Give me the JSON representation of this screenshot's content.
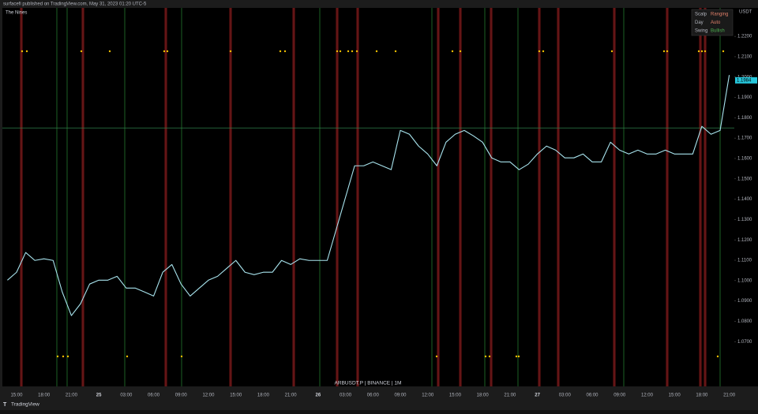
{
  "chart_data": {
    "type": "line",
    "published": "surfacefi published on TradingView.com, May 31, 2023 01:20 UTC-5",
    "indicator_name": "The Nines",
    "symbol_label": "ARBUSDT.P | BINANCE | 1M",
    "axis_unit": "USDT",
    "footer": "TradingView",
    "status_table": [
      [
        "Scalp",
        "Ranging"
      ],
      [
        "Day",
        "Auto"
      ],
      [
        "Swing",
        "Bullish"
      ]
    ],
    "categories": [
      null,
      "15:00",
      null,
      null,
      "18:00",
      null,
      null,
      "21:00",
      null,
      null,
      "25",
      null,
      null,
      "03:00",
      null,
      null,
      "06:00",
      null,
      null,
      "09:00",
      null,
      null,
      "12:00",
      null,
      null,
      "15:00",
      null,
      null,
      "18:00",
      null,
      null,
      "21:00",
      null,
      null,
      "26",
      null,
      null,
      "03:00",
      null,
      null,
      "06:00",
      null,
      null,
      "09:00",
      null,
      null,
      "12:00",
      null,
      null,
      "15:00",
      null,
      null,
      "18:00",
      null,
      null,
      "21:00",
      null,
      null,
      "27",
      null,
      null,
      "03:00",
      null,
      null,
      "06:00",
      null,
      null,
      "09:00",
      null,
      null,
      "12:00",
      null,
      null,
      "15:00",
      null,
      null,
      "18:00",
      null,
      null,
      "21:00"
    ],
    "values": [
      1.1002,
      1.1041,
      1.1138,
      1.1099,
      1.1107,
      1.1099,
      1.0944,
      1.0828,
      1.0886,
      1.0983,
      1.1002,
      1.1002,
      1.1021,
      1.0963,
      1.0963,
      1.0944,
      1.0924,
      1.1041,
      1.1079,
      1.0983,
      1.0924,
      1.0963,
      1.1002,
      1.1021,
      1.106,
      1.1099,
      1.1041,
      1.1029,
      1.1041,
      1.1041,
      1.1099,
      1.1079,
      1.1107,
      1.1099,
      1.1099,
      1.1099,
      1.1254,
      1.1409,
      1.1564,
      1.1564,
      1.1583,
      1.1564,
      1.1545,
      1.1738,
      1.1719,
      1.1661,
      1.1622,
      1.1564,
      1.168,
      1.1719,
      1.1738,
      1.1711,
      1.168,
      1.1603,
      1.1583,
      1.1583,
      1.1545,
      1.1572,
      1.1622,
      1.1661,
      1.1641,
      1.1603,
      1.1603,
      1.1622,
      1.1583,
      1.1583,
      1.168,
      1.1641,
      1.1622,
      1.1641,
      1.1622,
      1.1622,
      1.1641,
      1.1622,
      1.1622,
      1.1622,
      1.1758,
      1.1719,
      1.1738,
      1.201
    ],
    "color": "#a8e4ee",
    "last_price": 1.1984,
    "hline": 1.175,
    "ylim": [
      1.048,
      1.234
    ],
    "yticks": [
      {
        "value": 1.07,
        "label": "1.0700"
      },
      {
        "value": 1.08,
        "label": "1.0800"
      },
      {
        "value": 1.09,
        "label": "1.0900"
      },
      {
        "value": 1.1,
        "label": "1.1000"
      },
      {
        "value": 1.11,
        "label": "1.1100"
      },
      {
        "value": 1.12,
        "label": "1.1200"
      },
      {
        "value": 1.13,
        "label": "1.1300"
      },
      {
        "value": 1.14,
        "label": "1.1400"
      },
      {
        "value": 1.15,
        "label": "1.1500"
      },
      {
        "value": 1.16,
        "label": "1.1600"
      },
      {
        "value": 1.17,
        "label": "1.1700"
      },
      {
        "value": 1.18,
        "label": "1.1800"
      },
      {
        "value": 1.19,
        "label": "1.1900"
      },
      {
        "value": 1.2,
        "label": "1.2000"
      },
      {
        "value": 1.21,
        "label": "1.2100"
      },
      {
        "value": 1.22,
        "label": "1.2200"
      }
    ],
    "grid": false
  }
}
